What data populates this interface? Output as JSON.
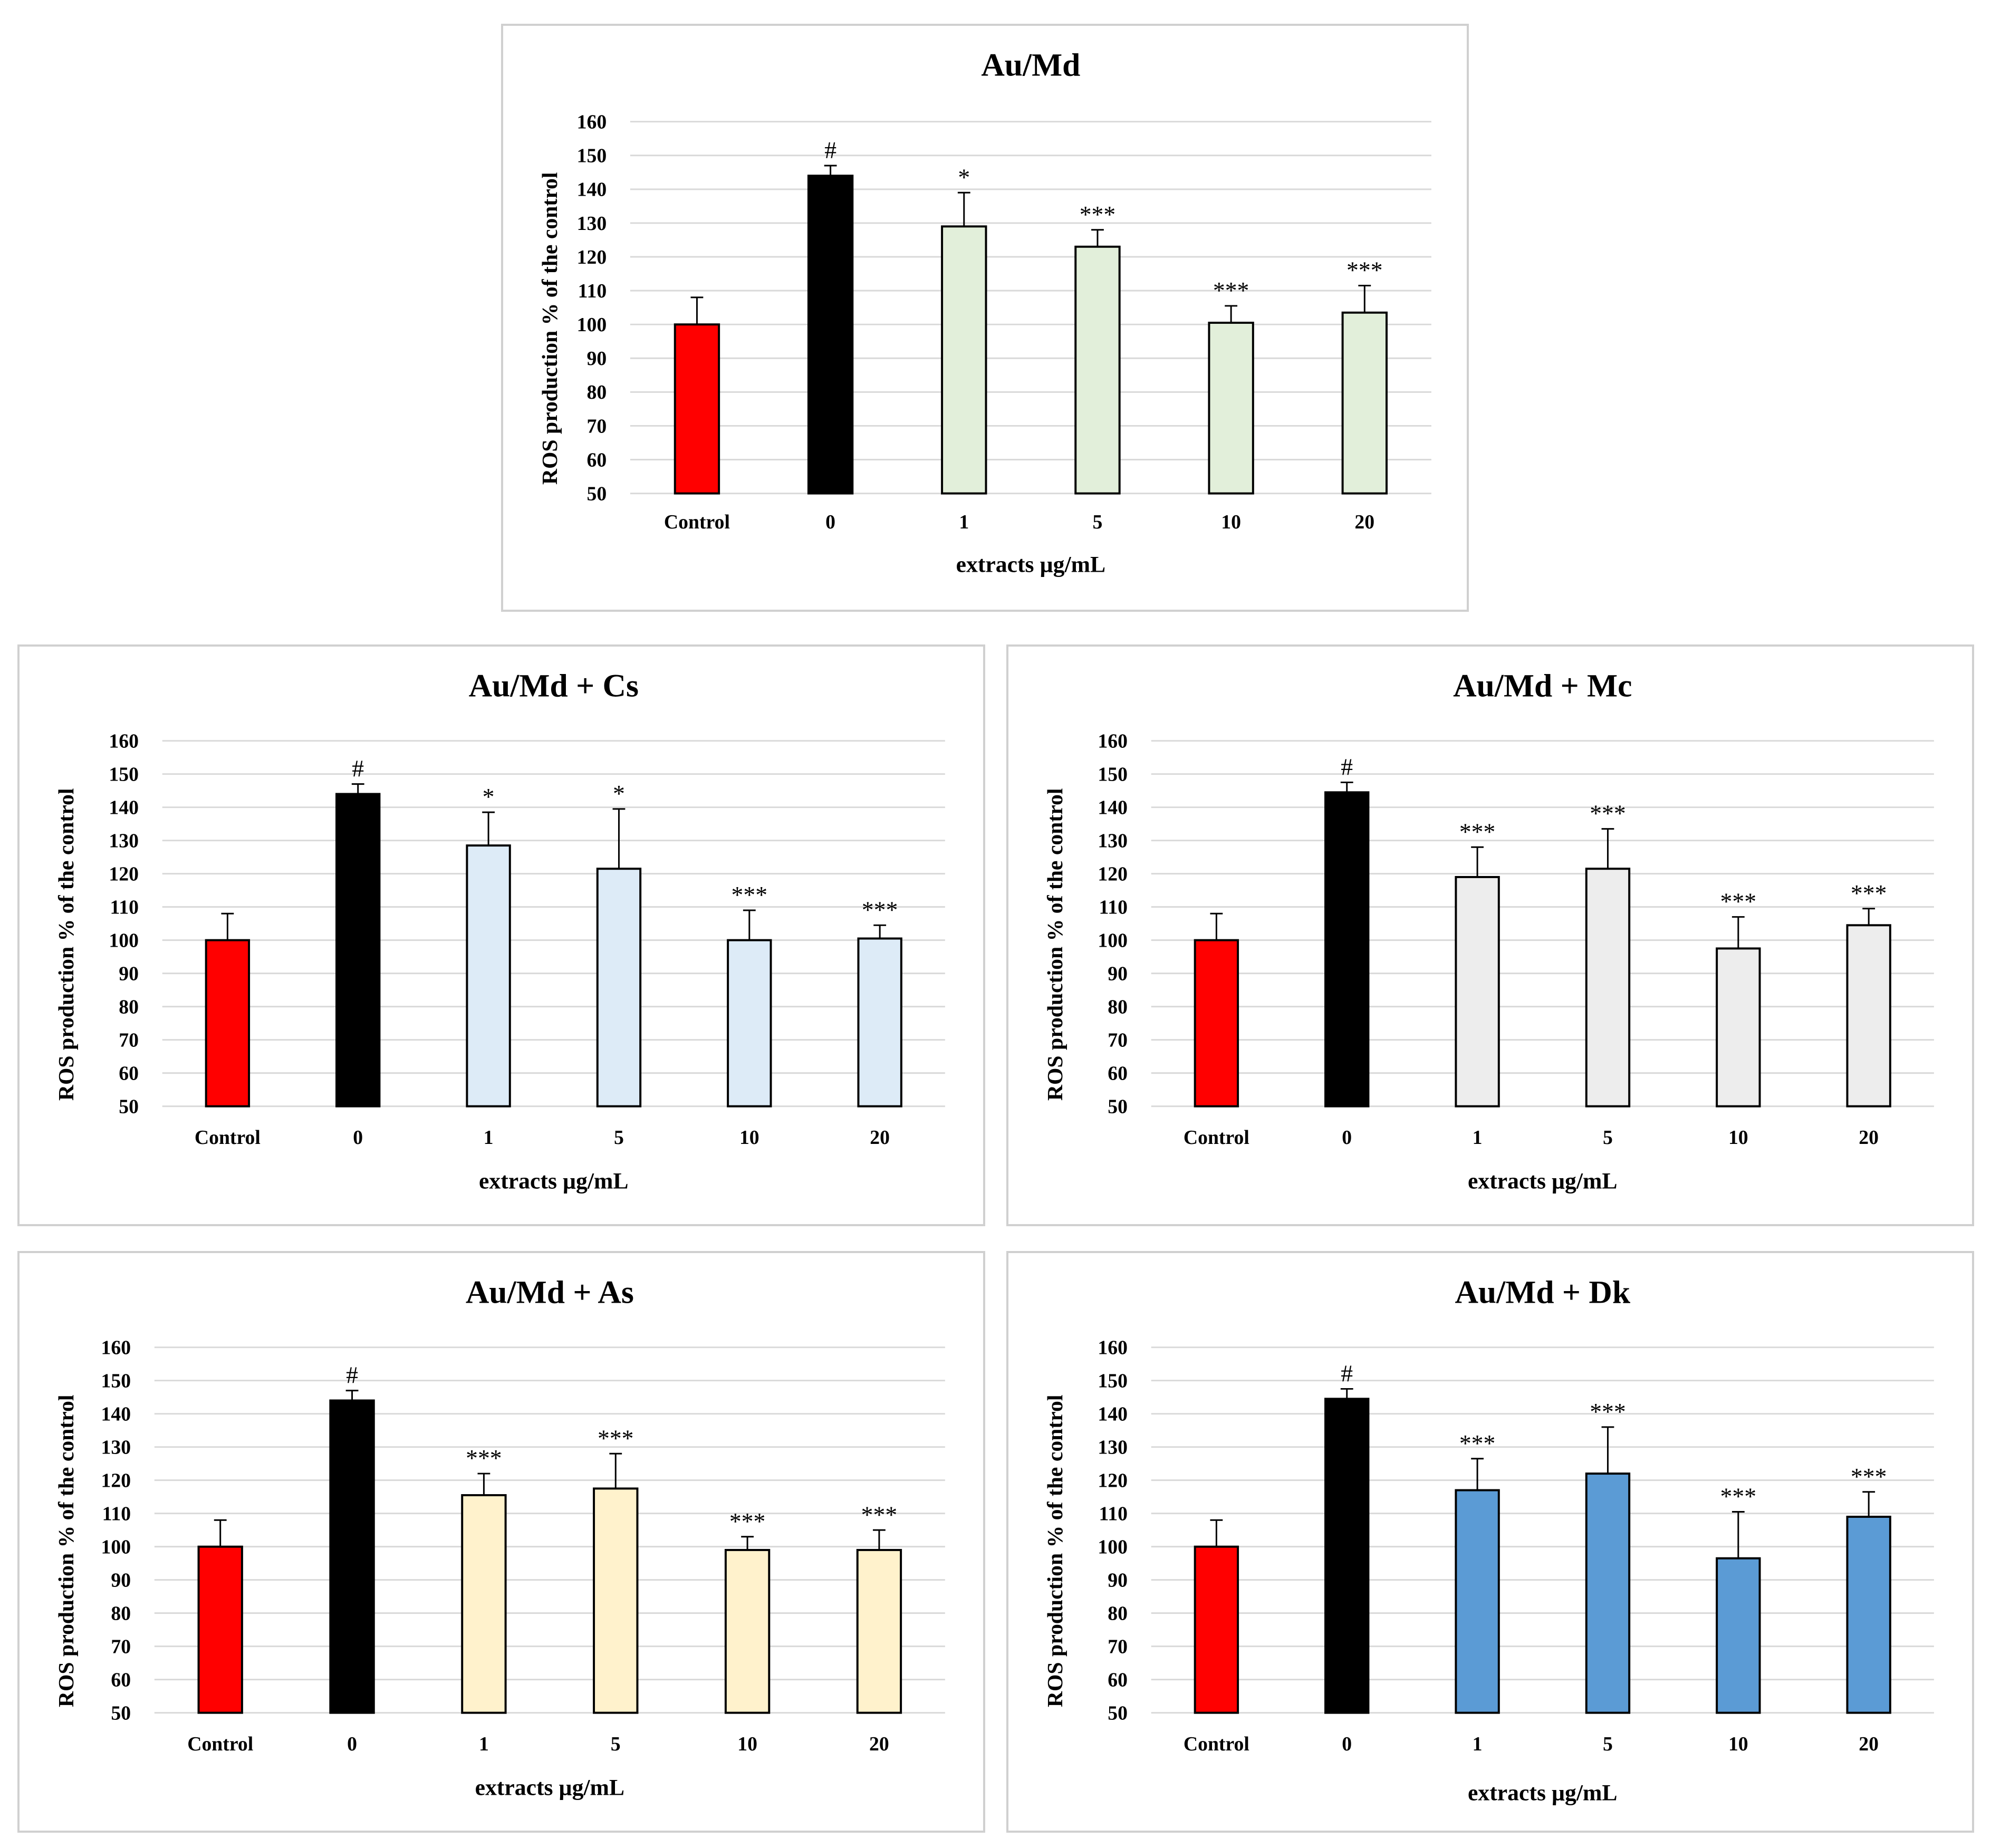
{
  "chart_data": [
    {
      "type": "bar",
      "title": "Au/Md",
      "xlabel": "extracts µg/mL",
      "ylabel": "ROS production  % of the control",
      "ylim": [
        50,
        160
      ],
      "yticks": [
        50,
        60,
        70,
        80,
        90,
        100,
        110,
        120,
        130,
        140,
        150,
        160
      ],
      "grid": true,
      "categories": [
        "Control",
        "0",
        "1",
        "5",
        "10",
        "20"
      ],
      "values": [
        100,
        144,
        129,
        123,
        100.5,
        103.5
      ],
      "errors": [
        8,
        3,
        10,
        5,
        5,
        8
      ],
      "significance": [
        "",
        "#",
        "*",
        "***",
        "***",
        "***"
      ],
      "colors": [
        "#ff0000",
        "#000000",
        "#e2efda",
        "#e2efda",
        "#e2efda",
        "#e2efda"
      ]
    },
    {
      "type": "bar",
      "title": "Au/Md + Cs",
      "xlabel": "extracts µg/mL",
      "ylabel": "ROS production  % of the control",
      "ylim": [
        50,
        160
      ],
      "yticks": [
        50,
        60,
        70,
        80,
        90,
        100,
        110,
        120,
        130,
        140,
        150,
        160
      ],
      "grid": true,
      "categories": [
        "Control",
        "0",
        "1",
        "5",
        "10",
        "20"
      ],
      "values": [
        100,
        144,
        128.5,
        121.5,
        100,
        100.5
      ],
      "errors": [
        8,
        3,
        10,
        18,
        9,
        4
      ],
      "significance": [
        "",
        "#",
        "*",
        "*",
        "***",
        "***"
      ],
      "colors": [
        "#ff0000",
        "#000000",
        "#ddebf7",
        "#ddebf7",
        "#ddebf7",
        "#ddebf7"
      ]
    },
    {
      "type": "bar",
      "title": "Au/Md + Mc",
      "xlabel": "extracts µg/mL",
      "ylabel": "ROS production  % of the control",
      "ylim": [
        50,
        160
      ],
      "yticks": [
        50,
        60,
        70,
        80,
        90,
        100,
        110,
        120,
        130,
        140,
        150,
        160
      ],
      "grid": true,
      "categories": [
        "Control",
        "0",
        "1",
        "5",
        "10",
        "20"
      ],
      "values": [
        100,
        144.5,
        119,
        121.5,
        97.5,
        104.5
      ],
      "errors": [
        8,
        3,
        9,
        12,
        9.5,
        5
      ],
      "significance": [
        "",
        "#",
        "***",
        "***",
        "***",
        "***"
      ],
      "colors": [
        "#ff0000",
        "#000000",
        "#ededed",
        "#ededed",
        "#ededed",
        "#ededed"
      ]
    },
    {
      "type": "bar",
      "title": "Au/Md + As",
      "xlabel": "extracts µg/mL",
      "ylabel": "ROS production  % of the control",
      "ylim": [
        50,
        160
      ],
      "yticks": [
        50,
        60,
        70,
        80,
        90,
        100,
        110,
        120,
        130,
        140,
        150,
        160
      ],
      "grid": true,
      "categories": [
        "Control",
        "0",
        "1",
        "5",
        "10",
        "20"
      ],
      "values": [
        100,
        144,
        115.5,
        117.5,
        99,
        99
      ],
      "errors": [
        8,
        3,
        6.5,
        10.5,
        4,
        6
      ],
      "significance": [
        "",
        "#",
        "***",
        "***",
        "***",
        "***"
      ],
      "colors": [
        "#ff0000",
        "#000000",
        "#fff2cc",
        "#fff2cc",
        "#fff2cc",
        "#fff2cc"
      ]
    },
    {
      "type": "bar",
      "title": "Au/Md + Dk",
      "xlabel": "extracts µg/mL",
      "ylabel": "ROS production  % of the control",
      "ylim": [
        50,
        160
      ],
      "yticks": [
        50,
        60,
        70,
        80,
        90,
        100,
        110,
        120,
        130,
        140,
        150,
        160
      ],
      "grid": true,
      "categories": [
        "Control",
        "0",
        "1",
        "5",
        "10",
        "20"
      ],
      "values": [
        100,
        144.5,
        117,
        122,
        96.5,
        109
      ],
      "errors": [
        8,
        3,
        9.5,
        14,
        14,
        7.5
      ],
      "significance": [
        "",
        "#",
        "***",
        "***",
        "***",
        "***"
      ],
      "colors": [
        "#ff0000",
        "#000000",
        "#5b9bd5",
        "#5b9bd5",
        "#5b9bd5",
        "#5b9bd5"
      ]
    }
  ]
}
